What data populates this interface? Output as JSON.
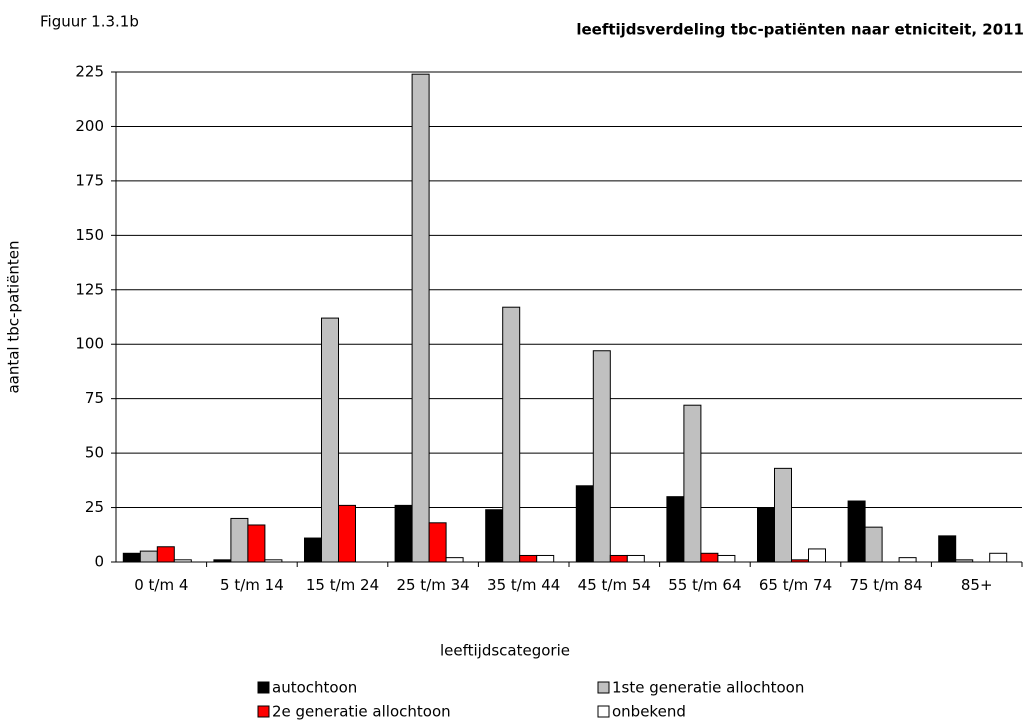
{
  "chart_data": {
    "type": "bar",
    "figure_label": "Figuur 1.3.1b",
    "title": "leeftijdsverdeling tbc-patiënten naar etniciteit, 2011",
    "xlabel": "leeftijdscategorie",
    "ylabel": "aantal tbc-patiënten",
    "categories": [
      "0 t/m 4",
      "5 t/m 14",
      "15 t/m 24",
      "25 t/m 34",
      "35 t/m 44",
      "45 t/m 54",
      "55 t/m 64",
      "65 t/m 74",
      "75 t/m 84",
      "85+"
    ],
    "series": [
      {
        "name": "autochtoon",
        "color": "#000000",
        "values": [
          4,
          1,
          11,
          26,
          24,
          35,
          30,
          25,
          28,
          12
        ]
      },
      {
        "name": "1ste generatie allochtoon",
        "color": "#c0c0c0",
        "values": [
          5,
          20,
          112,
          224,
          117,
          97,
          72,
          43,
          16,
          1
        ]
      },
      {
        "name": "2e generatie allochtoon",
        "color": "#ff0000",
        "values": [
          7,
          17,
          26,
          18,
          3,
          3,
          4,
          1,
          0,
          0
        ]
      },
      {
        "name": "onbekend",
        "color": "#ffffff",
        "values": [
          1,
          1,
          0,
          2,
          3,
          3,
          3,
          6,
          2,
          4
        ]
      }
    ],
    "ylim": [
      0,
      225
    ],
    "yticks": [
      0,
      25,
      50,
      75,
      100,
      125,
      150,
      175,
      200,
      225
    ],
    "grid": true,
    "legend": "bottom"
  }
}
